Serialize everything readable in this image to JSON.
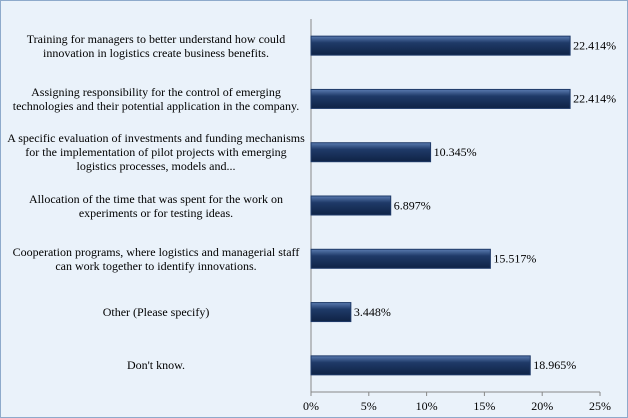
{
  "chart_data": {
    "type": "barh",
    "categories": [
      "Training for managers to better understand how could innovation in logistics create business benefits.",
      "Assigning responsibility for the control of emerging technologies and their potential application in the company.",
      "A specific evaluation of investments and funding mechanisms for the implementation of pilot projects with emerging logistics processes, models and...",
      "Allocation of the time that was spent for the work on experiments or for testing ideas.",
      "Cooperation programs, where logistics and managerial staff can work together to identify innovations.",
      "Other (Please specify)",
      "Don't know."
    ],
    "values": [
      22.414,
      22.414,
      10.345,
      6.897,
      15.517,
      3.448,
      18.965
    ],
    "value_labels": [
      "22.414%",
      "22.414%",
      "10.345%",
      "6.897%",
      "15.517%",
      "3.448%",
      "18.965%"
    ],
    "color": "#1f3a68",
    "xlim": [
      0,
      25
    ],
    "xticks": [
      {
        "value": 0,
        "label": "0%"
      },
      {
        "value": 5,
        "label": "5%"
      },
      {
        "value": 10,
        "label": "10%"
      },
      {
        "value": 15,
        "label": "15%"
      },
      {
        "value": 20,
        "label": "20%"
      },
      {
        "value": 25,
        "label": "25%"
      }
    ]
  }
}
